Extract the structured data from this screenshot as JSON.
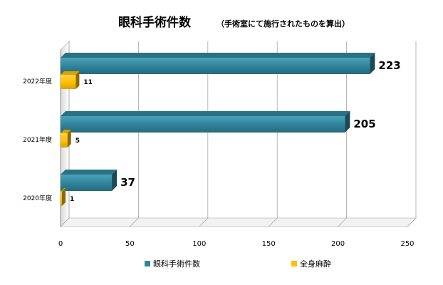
{
  "chart_data": {
    "type": "bar",
    "orientation": "horizontal",
    "title": "眼科手術件数",
    "subtitle": "（手術室にて施行されたものを算出）",
    "categories": [
      "2022年度",
      "2021年度",
      "2020年度"
    ],
    "series": [
      {
        "name": "眼科手術件数",
        "values": [
          223,
          205,
          37
        ],
        "color": "#31859C"
      },
      {
        "name": "全身麻酔",
        "values": [
          11,
          5,
          1
        ],
        "color": "#FFC000"
      }
    ],
    "xlim": [
      0,
      250
    ],
    "xticks": [
      "0",
      "50",
      "100",
      "150",
      "200",
      "250"
    ],
    "grid": true,
    "legend": "bottom",
    "style": "3d"
  }
}
